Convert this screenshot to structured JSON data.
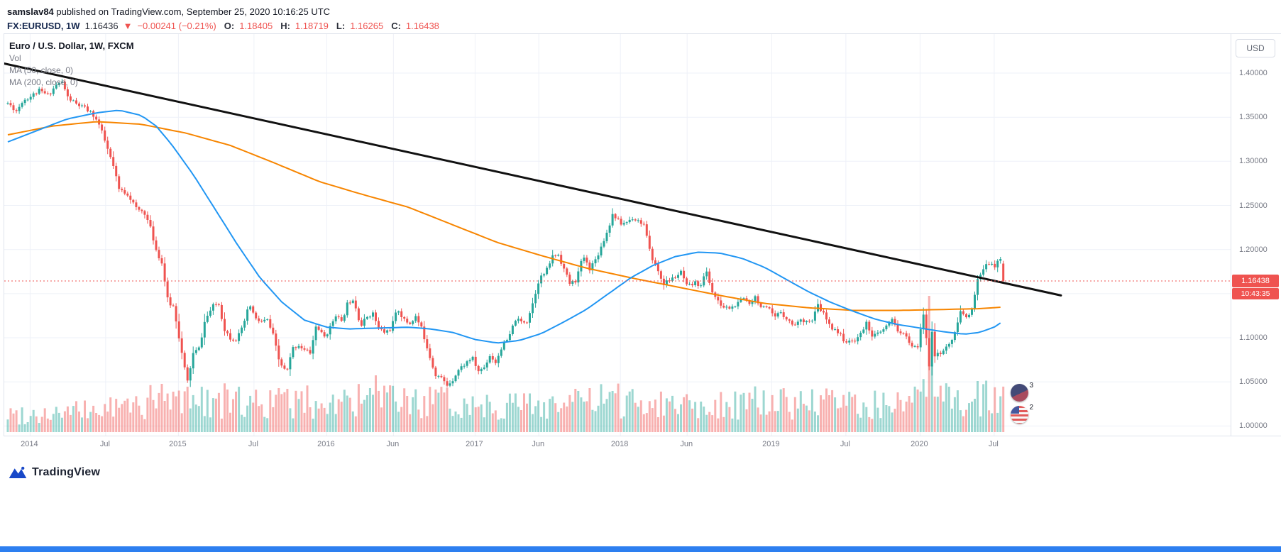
{
  "page": {
    "attribution": {
      "author": "samslav84",
      "rest": " published on TradingView.com, September 25, 2020 10:16:25 UTC"
    },
    "quote": {
      "symbol": "FX:EURUSD, 1W",
      "price": "1.16436",
      "direction": "▼",
      "change": "−0.00241 (−0.21%)",
      "o_label": "O:",
      "o": "1.18405",
      "h_label": "H:",
      "h": "1.18719",
      "l_label": "L:",
      "l": "1.16265",
      "c_label": "C:",
      "c": "1.16438"
    },
    "legend": {
      "title": "Euro / U.S. Dollar, 1W, FXCM",
      "vol": "Vol",
      "ma50": "MA (50, close, 0)",
      "ma200": "MA (200, close, 0)"
    },
    "axis_currency": "USD",
    "price_label": "1.16438",
    "countdown": "10:43:35",
    "reactions": [
      {
        "count": "3"
      },
      {
        "count": "2"
      }
    ],
    "footer_logo": "TradingView"
  },
  "colors": {
    "text": "#131722",
    "muted": "#787b86",
    "up": "#26a69a",
    "down": "#ef5350",
    "ma50": "#2196f3",
    "ma200": "#f78500",
    "trendline": "#111111",
    "grid": "#eef1f8",
    "border": "#dfe3ec",
    "chip_bg": "#ef5350",
    "chip_text": "#ffffff",
    "banner": "#2d7ff0"
  },
  "chart_data": {
    "type": "candlestick",
    "title": "Euro / U.S. Dollar, 1W, FXCM",
    "symbol": "EURUSD",
    "timeframe": "1W",
    "exchange": "FXCM",
    "xlabel": "",
    "ylabel": "",
    "grid": true,
    "legend_entries": [
      "Vol",
      "MA (50, close, 0)",
      "MA (200, close, 0)"
    ],
    "x_range_years": [
      2014.0,
      2020.73
    ],
    "ylim": [
      0.99,
      1.444
    ],
    "y_ticks": [
      1.4,
      1.35,
      1.3,
      1.25,
      1.2,
      1.1,
      1.05,
      1.0
    ],
    "grid_prices": [
      1.4,
      1.35,
      1.3,
      1.25,
      1.2,
      1.15,
      1.1,
      1.05,
      1.0
    ],
    "x_labels": [
      [
        "2014",
        2014.15
      ],
      [
        "Jul",
        2014.66
      ],
      [
        "2015",
        2015.15
      ],
      [
        "Jul",
        2015.66
      ],
      [
        "2016",
        2016.15
      ],
      [
        "Jun",
        2016.6
      ],
      [
        "2017",
        2017.15
      ],
      [
        "Jun",
        2017.58
      ],
      [
        "2018",
        2018.13
      ],
      [
        "Jun",
        2018.58
      ],
      [
        "2019",
        2019.15
      ],
      [
        "Jul",
        2019.65
      ],
      [
        "2020",
        2020.15
      ],
      [
        "Jul",
        2020.65
      ]
    ],
    "last_price": 1.16438,
    "last_candle": {
      "open": 1.18405,
      "high": 1.18719,
      "low": 1.16265,
      "close": 1.16438
    },
    "close_anchors": [
      [
        2014.0,
        1.366
      ],
      [
        2014.06,
        1.357
      ],
      [
        2014.1,
        1.369
      ],
      [
        2014.15,
        1.373
      ],
      [
        2014.21,
        1.38
      ],
      [
        2014.27,
        1.375
      ],
      [
        2014.33,
        1.387
      ],
      [
        2014.37,
        1.39
      ],
      [
        2014.4,
        1.373
      ],
      [
        2014.46,
        1.365
      ],
      [
        2014.52,
        1.36
      ],
      [
        2014.58,
        1.352
      ],
      [
        2014.62,
        1.34
      ],
      [
        2014.67,
        1.315
      ],
      [
        2014.71,
        1.295
      ],
      [
        2014.75,
        1.268
      ],
      [
        2014.81,
        1.263
      ],
      [
        2014.87,
        1.245
      ],
      [
        2014.92,
        1.243
      ],
      [
        2014.96,
        1.225
      ],
      [
        2015.0,
        1.2
      ],
      [
        2015.04,
        1.184
      ],
      [
        2015.08,
        1.14
      ],
      [
        2015.12,
        1.135
      ],
      [
        2015.17,
        1.085
      ],
      [
        2015.21,
        1.049
      ],
      [
        2015.25,
        1.082
      ],
      [
        2015.29,
        1.088
      ],
      [
        2015.33,
        1.12
      ],
      [
        2015.38,
        1.135
      ],
      [
        2015.42,
        1.14
      ],
      [
        2015.46,
        1.11
      ],
      [
        2015.5,
        1.1
      ],
      [
        2015.54,
        1.098
      ],
      [
        2015.58,
        1.11
      ],
      [
        2015.63,
        1.138
      ],
      [
        2015.67,
        1.121
      ],
      [
        2015.71,
        1.118
      ],
      [
        2015.75,
        1.12
      ],
      [
        2015.79,
        1.102
      ],
      [
        2015.83,
        1.073
      ],
      [
        2015.88,
        1.06
      ],
      [
        2015.92,
        1.088
      ],
      [
        2015.96,
        1.092
      ],
      [
        2016.0,
        1.086
      ],
      [
        2016.04,
        1.083
      ],
      [
        2016.08,
        1.115
      ],
      [
        2016.13,
        1.1
      ],
      [
        2016.17,
        1.11
      ],
      [
        2016.21,
        1.127
      ],
      [
        2016.25,
        1.117
      ],
      [
        2016.29,
        1.139
      ],
      [
        2016.33,
        1.145
      ],
      [
        2016.38,
        1.113
      ],
      [
        2016.42,
        1.124
      ],
      [
        2016.46,
        1.128
      ],
      [
        2016.5,
        1.111
      ],
      [
        2016.54,
        1.106
      ],
      [
        2016.58,
        1.11
      ],
      [
        2016.63,
        1.133
      ],
      [
        2016.67,
        1.12
      ],
      [
        2016.71,
        1.116
      ],
      [
        2016.75,
        1.124
      ],
      [
        2016.79,
        1.11
      ],
      [
        2016.83,
        1.088
      ],
      [
        2016.88,
        1.059
      ],
      [
        2016.92,
        1.055
      ],
      [
        2016.96,
        1.046
      ],
      [
        2017.0,
        1.053
      ],
      [
        2017.04,
        1.064
      ],
      [
        2017.08,
        1.07
      ],
      [
        2017.13,
        1.078
      ],
      [
        2017.17,
        1.062
      ],
      [
        2017.21,
        1.066
      ],
      [
        2017.25,
        1.08
      ],
      [
        2017.29,
        1.072
      ],
      [
        2017.33,
        1.09
      ],
      [
        2017.38,
        1.1
      ],
      [
        2017.42,
        1.121
      ],
      [
        2017.46,
        1.118
      ],
      [
        2017.5,
        1.119
      ],
      [
        2017.54,
        1.14
      ],
      [
        2017.58,
        1.166
      ],
      [
        2017.63,
        1.175
      ],
      [
        2017.67,
        1.192
      ],
      [
        2017.71,
        1.195
      ],
      [
        2017.75,
        1.178
      ],
      [
        2017.79,
        1.161
      ],
      [
        2017.83,
        1.165
      ],
      [
        2017.88,
        1.193
      ],
      [
        2017.92,
        1.178
      ],
      [
        2017.96,
        1.188
      ],
      [
        2018.0,
        1.203
      ],
      [
        2018.04,
        1.22
      ],
      [
        2018.08,
        1.241
      ],
      [
        2018.13,
        1.229
      ],
      [
        2018.17,
        1.231
      ],
      [
        2018.21,
        1.236
      ],
      [
        2018.25,
        1.233
      ],
      [
        2018.29,
        1.228
      ],
      [
        2018.33,
        1.196
      ],
      [
        2018.38,
        1.177
      ],
      [
        2018.42,
        1.161
      ],
      [
        2018.46,
        1.165
      ],
      [
        2018.5,
        1.169
      ],
      [
        2018.54,
        1.174
      ],
      [
        2018.58,
        1.157
      ],
      [
        2018.63,
        1.162
      ],
      [
        2018.67,
        1.16
      ],
      [
        2018.71,
        1.175
      ],
      [
        2018.75,
        1.152
      ],
      [
        2018.79,
        1.14
      ],
      [
        2018.83,
        1.134
      ],
      [
        2018.88,
        1.134
      ],
      [
        2018.92,
        1.138
      ],
      [
        2018.96,
        1.145
      ],
      [
        2019.0,
        1.14
      ],
      [
        2019.04,
        1.147
      ],
      [
        2019.08,
        1.134
      ],
      [
        2019.13,
        1.132
      ],
      [
        2019.17,
        1.122
      ],
      [
        2019.21,
        1.13
      ],
      [
        2019.25,
        1.122
      ],
      [
        2019.29,
        1.115
      ],
      [
        2019.33,
        1.118
      ],
      [
        2019.38,
        1.121
      ],
      [
        2019.42,
        1.117
      ],
      [
        2019.46,
        1.137
      ],
      [
        2019.5,
        1.127
      ],
      [
        2019.54,
        1.113
      ],
      [
        2019.58,
        1.11
      ],
      [
        2019.63,
        1.099
      ],
      [
        2019.67,
        1.094
      ],
      [
        2019.71,
        1.098
      ],
      [
        2019.75,
        1.104
      ],
      [
        2019.79,
        1.117
      ],
      [
        2019.83,
        1.102
      ],
      [
        2019.88,
        1.105
      ],
      [
        2019.92,
        1.112
      ],
      [
        2019.96,
        1.12
      ],
      [
        2020.0,
        1.109
      ],
      [
        2020.04,
        1.103
      ],
      [
        2020.08,
        1.095
      ],
      [
        2020.13,
        1.085
      ],
      [
        2020.17,
        1.128
      ],
      [
        2020.19,
        1.105
      ],
      [
        2020.21,
        1.066
      ],
      [
        2020.23,
        1.11
      ],
      [
        2020.25,
        1.08
      ],
      [
        2020.29,
        1.082
      ],
      [
        2020.33,
        1.09
      ],
      [
        2020.38,
        1.101
      ],
      [
        2020.42,
        1.129
      ],
      [
        2020.46,
        1.125
      ],
      [
        2020.5,
        1.131
      ],
      [
        2020.54,
        1.166
      ],
      [
        2020.58,
        1.178
      ],
      [
        2020.63,
        1.188
      ],
      [
        2020.65,
        1.18
      ],
      [
        2020.67,
        1.184
      ],
      [
        2020.69,
        1.192
      ],
      [
        2020.71,
        1.184
      ],
      [
        2020.73,
        1.16438
      ]
    ],
    "ma50": [
      [
        2014.0,
        1.322
      ],
      [
        2014.2,
        1.335
      ],
      [
        2014.4,
        1.348
      ],
      [
        2014.6,
        1.355
      ],
      [
        2014.75,
        1.358
      ],
      [
        2014.9,
        1.352
      ],
      [
        2015.0,
        1.34
      ],
      [
        2015.1,
        1.32
      ],
      [
        2015.25,
        1.285
      ],
      [
        2015.4,
        1.245
      ],
      [
        2015.55,
        1.205
      ],
      [
        2015.7,
        1.168
      ],
      [
        2015.85,
        1.14
      ],
      [
        2016.0,
        1.12
      ],
      [
        2016.15,
        1.112
      ],
      [
        2016.3,
        1.11
      ],
      [
        2016.5,
        1.111
      ],
      [
        2016.7,
        1.112
      ],
      [
        2016.85,
        1.11
      ],
      [
        2017.0,
        1.106
      ],
      [
        2017.15,
        1.098
      ],
      [
        2017.3,
        1.094
      ],
      [
        2017.45,
        1.097
      ],
      [
        2017.6,
        1.105
      ],
      [
        2017.75,
        1.118
      ],
      [
        2017.9,
        1.132
      ],
      [
        2018.05,
        1.15
      ],
      [
        2018.2,
        1.168
      ],
      [
        2018.35,
        1.182
      ],
      [
        2018.5,
        1.192
      ],
      [
        2018.65,
        1.197
      ],
      [
        2018.8,
        1.196
      ],
      [
        2018.95,
        1.19
      ],
      [
        2019.1,
        1.18
      ],
      [
        2019.25,
        1.166
      ],
      [
        2019.4,
        1.152
      ],
      [
        2019.55,
        1.14
      ],
      [
        2019.7,
        1.13
      ],
      [
        2019.85,
        1.121
      ],
      [
        2020.0,
        1.115
      ],
      [
        2020.15,
        1.111
      ],
      [
        2020.3,
        1.107
      ],
      [
        2020.45,
        1.104
      ],
      [
        2020.55,
        1.106
      ],
      [
        2020.65,
        1.112
      ],
      [
        2020.73,
        1.121
      ]
    ],
    "ma200": [
      [
        2014.0,
        1.33
      ],
      [
        2014.3,
        1.34
      ],
      [
        2014.6,
        1.345
      ],
      [
        2014.9,
        1.342
      ],
      [
        2015.2,
        1.332
      ],
      [
        2015.5,
        1.318
      ],
      [
        2015.8,
        1.298
      ],
      [
        2016.1,
        1.277
      ],
      [
        2016.4,
        1.262
      ],
      [
        2016.7,
        1.248
      ],
      [
        2017.0,
        1.228
      ],
      [
        2017.3,
        1.208
      ],
      [
        2017.6,
        1.193
      ],
      [
        2017.9,
        1.179
      ],
      [
        2018.2,
        1.168
      ],
      [
        2018.5,
        1.158
      ],
      [
        2018.8,
        1.148
      ],
      [
        2019.1,
        1.139
      ],
      [
        2019.4,
        1.134
      ],
      [
        2019.7,
        1.131
      ],
      [
        2020.0,
        1.131
      ],
      [
        2020.3,
        1.132
      ],
      [
        2020.55,
        1.133
      ],
      [
        2020.73,
        1.135
      ]
    ],
    "trendline": {
      "from": [
        2013.97,
        1.411
      ],
      "to": [
        2021.1,
        1.148
      ]
    },
    "volume": {
      "envelope": [
        [
          2014.0,
          26
        ],
        [
          2014.5,
          30
        ],
        [
          2014.8,
          38
        ],
        [
          2015.0,
          46
        ],
        [
          2015.3,
          48
        ],
        [
          2015.6,
          44
        ],
        [
          2016.0,
          44
        ],
        [
          2016.5,
          46
        ],
        [
          2017.0,
          42
        ],
        [
          2017.5,
          40
        ],
        [
          2018.0,
          46
        ],
        [
          2018.3,
          46
        ],
        [
          2018.8,
          42
        ],
        [
          2019.2,
          44
        ],
        [
          2019.6,
          42
        ],
        [
          2020.0,
          40
        ],
        [
          2020.2,
          52
        ],
        [
          2020.45,
          48
        ],
        [
          2020.73,
          52
        ]
      ],
      "spikes": [
        [
          2015.04,
          68
        ],
        [
          2015.21,
          64
        ],
        [
          2016.48,
          80
        ],
        [
          2016.88,
          60
        ],
        [
          2018.08,
          58
        ],
        [
          2020.21,
          192
        ],
        [
          2020.23,
          95
        ],
        [
          2020.54,
          72
        ]
      ]
    }
  }
}
